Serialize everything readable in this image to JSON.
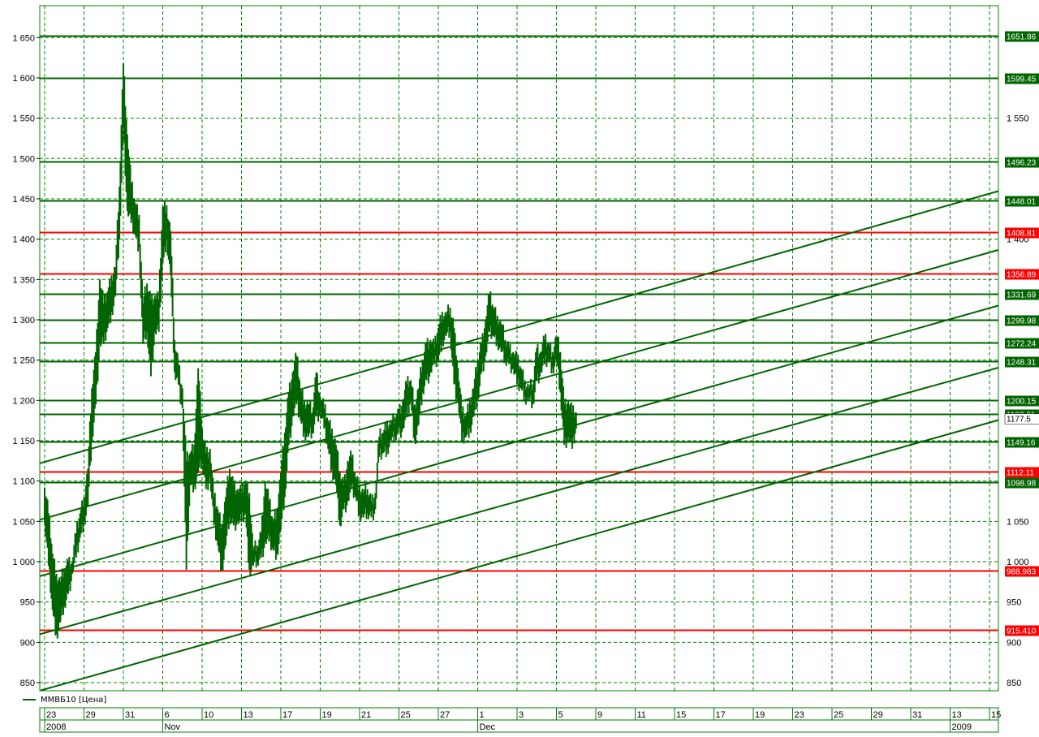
{
  "chart_data": {
    "type": "bar",
    "variant": "ohlc-price-bars",
    "colors": {
      "price": "#006400",
      "line": "#006400",
      "red_level": "#ff0000",
      "grid": "#008000",
      "label_text": "#ffffff",
      "axis_text": "#000000"
    },
    "y_axis": {
      "min": 840,
      "max": 1665,
      "ticks": [
        {
          "value": 850,
          "label": "850"
        },
        {
          "value": 900,
          "label": "900"
        },
        {
          "value": 950,
          "label": "950"
        },
        {
          "value": 1000,
          "label": "1 000"
        },
        {
          "value": 1050,
          "label": "1 050"
        },
        {
          "value": 1100,
          "label": "1 100"
        },
        {
          "value": 1150,
          "label": "1 150"
        },
        {
          "value": 1200,
          "label": "1 200"
        },
        {
          "value": 1250,
          "label": "1 250"
        },
        {
          "value": 1300,
          "label": "1 300"
        },
        {
          "value": 1350,
          "label": "1 350"
        },
        {
          "value": 1400,
          "label": "1 400"
        },
        {
          "value": 1450,
          "label": "1 450"
        },
        {
          "value": 1500,
          "label": "1 500"
        },
        {
          "value": 1550,
          "label": "1 550"
        },
        {
          "value": 1600,
          "label": "1 600"
        },
        {
          "value": 1650,
          "label": "1 650"
        }
      ],
      "right_ticks": [
        {
          "value": 850,
          "label": "850"
        },
        {
          "value": 900,
          "label": "900"
        },
        {
          "value": 950,
          "label": "950"
        },
        {
          "value": 1000,
          "label": "1 000"
        },
        {
          "value": 1050,
          "label": "1 050"
        },
        {
          "value": 1400,
          "label": "1 400"
        },
        {
          "value": 1550,
          "label": "1 550"
        }
      ]
    },
    "x_axis": {
      "day_ticks": [
        "23",
        "29",
        "31",
        "6",
        "10",
        "13",
        "17",
        "19",
        "21",
        "25",
        "27",
        "1",
        "3",
        "5",
        "9",
        "11",
        "15",
        "17",
        "19",
        "23",
        "25",
        "29",
        "31",
        "13",
        "15"
      ],
      "major_labels": [
        {
          "label": "2008",
          "tick_index": 0
        },
        {
          "label": "Nov",
          "tick_index": 3
        },
        {
          "label": "Dec",
          "tick_index": 11
        },
        {
          "label": "2009",
          "tick_index": 23
        }
      ]
    },
    "grid": true,
    "legend": {
      "label": "ММВБ10 [Цена]",
      "position": "bottom-left"
    },
    "levels": [
      {
        "value": 1651.86,
        "label": "1651.86",
        "color": "green"
      },
      {
        "value": 1599.45,
        "label": "1599.45",
        "color": "green"
      },
      {
        "value": 1496.23,
        "label": "1496.23",
        "color": "green"
      },
      {
        "value": 1448.01,
        "label": "1448.01",
        "color": "green"
      },
      {
        "value": 1408.81,
        "label": "1408.81",
        "color": "red"
      },
      {
        "value": 1356.89,
        "label": "1356.89",
        "color": "red"
      },
      {
        "value": 1331.69,
        "label": "1331.69",
        "color": "green"
      },
      {
        "value": 1299.98,
        "label": "1299.98",
        "color": "green"
      },
      {
        "value": 1272.24,
        "label": "1272.24",
        "color": "green"
      },
      {
        "value": 1248.31,
        "label": "1248.31",
        "color": "green"
      },
      {
        "value": 1200.15,
        "label": "1200.15",
        "color": "green"
      },
      {
        "value": 1183.21,
        "label": "1183.21",
        "color": "green"
      },
      {
        "value": 1149.16,
        "label": "1149.16",
        "color": "green"
      },
      {
        "value": 1112.11,
        "label": "1112.11",
        "color": "red"
      },
      {
        "value": 1098.98,
        "label": "1098.98",
        "color": "green"
      },
      {
        "value": 988.98,
        "label": "988.983",
        "color": "red"
      },
      {
        "value": 915.41,
        "label": "915.410",
        "color": "red"
      }
    ],
    "last_price": {
      "value": 1177.5,
      "label": "1177.5"
    },
    "trend_lines": [
      {
        "x1": 0,
        "y1": 1122,
        "x2": 24.4,
        "y2": 1462
      },
      {
        "x1": 0,
        "y1": 1052,
        "x2": 24.4,
        "y2": 1389
      },
      {
        "x1": 0,
        "y1": 982,
        "x2": 24.4,
        "y2": 1320
      },
      {
        "x1": 0,
        "y1": 910,
        "x2": 24.4,
        "y2": 1243
      },
      {
        "x1": 0,
        "y1": 840,
        "x2": 24.4,
        "y2": 1178
      }
    ],
    "bars": [
      {
        "x": 0.0,
        "h": 1092,
        "l": 1048
      },
      {
        "x": 0.1,
        "h": 1060,
        "l": 995
      },
      {
        "x": 0.2,
        "h": 1010,
        "l": 940
      },
      {
        "x": 0.3,
        "h": 985,
        "l": 910
      },
      {
        "x": 0.4,
        "h": 975,
        "l": 925
      },
      {
        "x": 0.5,
        "h": 990,
        "l": 945
      },
      {
        "x": 0.6,
        "h": 1000,
        "l": 960
      },
      {
        "x": 0.7,
        "h": 1000,
        "l": 985
      },
      {
        "x": 0.8,
        "h": 1035,
        "l": 1005
      },
      {
        "x": 0.9,
        "h": 1060,
        "l": 1030
      },
      {
        "x": 1.0,
        "h": 1080,
        "l": 1050
      },
      {
        "x": 1.1,
        "h": 1115,
        "l": 1070
      },
      {
        "x": 1.2,
        "h": 1215,
        "l": 1150
      },
      {
        "x": 1.3,
        "h": 1260,
        "l": 1195
      },
      {
        "x": 1.4,
        "h": 1350,
        "l": 1270
      },
      {
        "x": 1.5,
        "h": 1320,
        "l": 1270
      },
      {
        "x": 1.6,
        "h": 1335,
        "l": 1290
      },
      {
        "x": 1.7,
        "h": 1355,
        "l": 1310
      },
      {
        "x": 1.8,
        "h": 1365,
        "l": 1330
      },
      {
        "x": 1.9,
        "h": 1465,
        "l": 1400
      },
      {
        "x": 2.0,
        "h": 1618,
        "l": 1540
      },
      {
        "x": 2.1,
        "h": 1530,
        "l": 1435
      },
      {
        "x": 2.2,
        "h": 1468,
        "l": 1420
      },
      {
        "x": 2.3,
        "h": 1445,
        "l": 1405
      },
      {
        "x": 2.4,
        "h": 1430,
        "l": 1390
      },
      {
        "x": 2.5,
        "h": 1320,
        "l": 1270
      },
      {
        "x": 2.6,
        "h": 1345,
        "l": 1285
      },
      {
        "x": 2.7,
        "h": 1325,
        "l": 1230
      },
      {
        "x": 2.8,
        "h": 1330,
        "l": 1285
      },
      {
        "x": 2.9,
        "h": 1325,
        "l": 1285
      },
      {
        "x": 3.0,
        "h": 1440,
        "l": 1370
      },
      {
        "x": 3.1,
        "h": 1442,
        "l": 1400
      },
      {
        "x": 3.2,
        "h": 1410,
        "l": 1355
      },
      {
        "x": 3.3,
        "h": 1275,
        "l": 1235
      },
      {
        "x": 3.4,
        "h": 1245,
        "l": 1220
      },
      {
        "x": 3.5,
        "h": 1215,
        "l": 1190
      },
      {
        "x": 3.6,
        "h": 1125,
        "l": 990
      },
      {
        "x": 3.7,
        "h": 1135,
        "l": 1095
      },
      {
        "x": 3.8,
        "h": 1145,
        "l": 1095
      },
      {
        "x": 3.9,
        "h": 1240,
        "l": 1110
      },
      {
        "x": 4.0,
        "h": 1165,
        "l": 1125
      },
      {
        "x": 4.1,
        "h": 1135,
        "l": 1090
      },
      {
        "x": 4.2,
        "h": 1140,
        "l": 1105
      },
      {
        "x": 4.3,
        "h": 1080,
        "l": 1045
      },
      {
        "x": 4.4,
        "h": 1065,
        "l": 1020
      },
      {
        "x": 4.5,
        "h": 1045,
        "l": 990
      },
      {
        "x": 4.6,
        "h": 1080,
        "l": 1020
      },
      {
        "x": 4.7,
        "h": 1115,
        "l": 1055
      },
      {
        "x": 4.8,
        "h": 1095,
        "l": 1045
      },
      {
        "x": 4.9,
        "h": 1090,
        "l": 1050
      },
      {
        "x": 5.0,
        "h": 1085,
        "l": 1050
      },
      {
        "x": 5.1,
        "h": 1100,
        "l": 1060
      },
      {
        "x": 5.2,
        "h": 1085,
        "l": 990
      },
      {
        "x": 5.3,
        "h": 1015,
        "l": 995
      },
      {
        "x": 5.4,
        "h": 1020,
        "l": 1000
      },
      {
        "x": 5.5,
        "h": 1035,
        "l": 1005
      },
      {
        "x": 5.6,
        "h": 1100,
        "l": 1025
      },
      {
        "x": 5.7,
        "h": 1075,
        "l": 1025
      },
      {
        "x": 5.8,
        "h": 1050,
        "l": 1015
      },
      {
        "x": 5.9,
        "h": 1065,
        "l": 1010
      },
      {
        "x": 6.0,
        "h": 1110,
        "l": 1040
      },
      {
        "x": 6.1,
        "h": 1160,
        "l": 1080
      },
      {
        "x": 6.2,
        "h": 1210,
        "l": 1145
      },
      {
        "x": 6.3,
        "h": 1235,
        "l": 1180
      },
      {
        "x": 6.4,
        "h": 1255,
        "l": 1195
      },
      {
        "x": 6.5,
        "h": 1215,
        "l": 1175
      },
      {
        "x": 6.6,
        "h": 1200,
        "l": 1160
      },
      {
        "x": 6.7,
        "h": 1195,
        "l": 1155
      },
      {
        "x": 6.8,
        "h": 1185,
        "l": 1160
      },
      {
        "x": 6.9,
        "h": 1235,
        "l": 1180
      },
      {
        "x": 7.0,
        "h": 1205,
        "l": 1185
      },
      {
        "x": 7.1,
        "h": 1190,
        "l": 1165
      },
      {
        "x": 7.2,
        "h": 1175,
        "l": 1140
      },
      {
        "x": 7.3,
        "h": 1165,
        "l": 1115
      },
      {
        "x": 7.4,
        "h": 1145,
        "l": 1095
      },
      {
        "x": 7.5,
        "h": 1110,
        "l": 1045
      },
      {
        "x": 7.6,
        "h": 1095,
        "l": 1065
      },
      {
        "x": 7.7,
        "h": 1125,
        "l": 1075
      },
      {
        "x": 7.8,
        "h": 1130,
        "l": 1090
      },
      {
        "x": 7.9,
        "h": 1105,
        "l": 1080
      },
      {
        "x": 8.0,
        "h": 1095,
        "l": 1060
      },
      {
        "x": 8.1,
        "h": 1085,
        "l": 1055
      },
      {
        "x": 8.2,
        "h": 1090,
        "l": 1060
      },
      {
        "x": 8.3,
        "h": 1075,
        "l": 1055
      },
      {
        "x": 8.4,
        "h": 1085,
        "l": 1065
      },
      {
        "x": 8.5,
        "h": 1155,
        "l": 1130
      },
      {
        "x": 8.6,
        "h": 1160,
        "l": 1135
      },
      {
        "x": 8.7,
        "h": 1175,
        "l": 1140
      },
      {
        "x": 8.8,
        "h": 1170,
        "l": 1150
      },
      {
        "x": 8.9,
        "h": 1180,
        "l": 1155
      },
      {
        "x": 9.0,
        "h": 1185,
        "l": 1160
      },
      {
        "x": 9.1,
        "h": 1200,
        "l": 1165
      },
      {
        "x": 9.2,
        "h": 1220,
        "l": 1180
      },
      {
        "x": 9.3,
        "h": 1225,
        "l": 1200
      },
      {
        "x": 9.4,
        "h": 1195,
        "l": 1150
      },
      {
        "x": 9.5,
        "h": 1215,
        "l": 1170
      },
      {
        "x": 9.6,
        "h": 1250,
        "l": 1210
      },
      {
        "x": 9.7,
        "h": 1270,
        "l": 1225
      },
      {
        "x": 9.8,
        "h": 1275,
        "l": 1235
      },
      {
        "x": 9.9,
        "h": 1265,
        "l": 1245
      },
      {
        "x": 10.0,
        "h": 1290,
        "l": 1250
      },
      {
        "x": 10.1,
        "h": 1310,
        "l": 1275
      },
      {
        "x": 10.2,
        "h": 1305,
        "l": 1280
      },
      {
        "x": 10.3,
        "h": 1315,
        "l": 1285
      },
      {
        "x": 10.4,
        "h": 1290,
        "l": 1220
      },
      {
        "x": 10.5,
        "h": 1240,
        "l": 1200
      },
      {
        "x": 10.6,
        "h": 1185,
        "l": 1150
      },
      {
        "x": 10.7,
        "h": 1180,
        "l": 1155
      },
      {
        "x": 10.8,
        "h": 1200,
        "l": 1165
      },
      {
        "x": 10.9,
        "h": 1215,
        "l": 1180
      },
      {
        "x": 11.0,
        "h": 1250,
        "l": 1200
      },
      {
        "x": 11.1,
        "h": 1270,
        "l": 1235
      },
      {
        "x": 11.2,
        "h": 1300,
        "l": 1255
      },
      {
        "x": 11.3,
        "h": 1330,
        "l": 1285
      },
      {
        "x": 11.4,
        "h": 1315,
        "l": 1280
      },
      {
        "x": 11.5,
        "h": 1305,
        "l": 1275
      },
      {
        "x": 11.6,
        "h": 1295,
        "l": 1260
      },
      {
        "x": 11.7,
        "h": 1275,
        "l": 1250
      },
      {
        "x": 11.8,
        "h": 1265,
        "l": 1245
      },
      {
        "x": 11.9,
        "h": 1260,
        "l": 1240
      },
      {
        "x": 12.0,
        "h": 1250,
        "l": 1220
      },
      {
        "x": 12.1,
        "h": 1240,
        "l": 1215
      },
      {
        "x": 12.2,
        "h": 1225,
        "l": 1205
      },
      {
        "x": 12.3,
        "h": 1215,
        "l": 1200
      },
      {
        "x": 12.4,
        "h": 1220,
        "l": 1195
      },
      {
        "x": 12.5,
        "h": 1265,
        "l": 1225
      },
      {
        "x": 12.6,
        "h": 1260,
        "l": 1235
      },
      {
        "x": 12.7,
        "h": 1275,
        "l": 1245
      },
      {
        "x": 12.8,
        "h": 1270,
        "l": 1250
      },
      {
        "x": 12.9,
        "h": 1260,
        "l": 1240
      },
      {
        "x": 13.0,
        "h": 1280,
        "l": 1250
      },
      {
        "x": 13.1,
        "h": 1260,
        "l": 1210
      },
      {
        "x": 13.2,
        "h": 1195,
        "l": 1145
      },
      {
        "x": 13.3,
        "h": 1200,
        "l": 1155
      },
      {
        "x": 13.4,
        "h": 1185,
        "l": 1140
      },
      {
        "x": 13.5,
        "h": 1185,
        "l": 1165
      }
    ]
  }
}
